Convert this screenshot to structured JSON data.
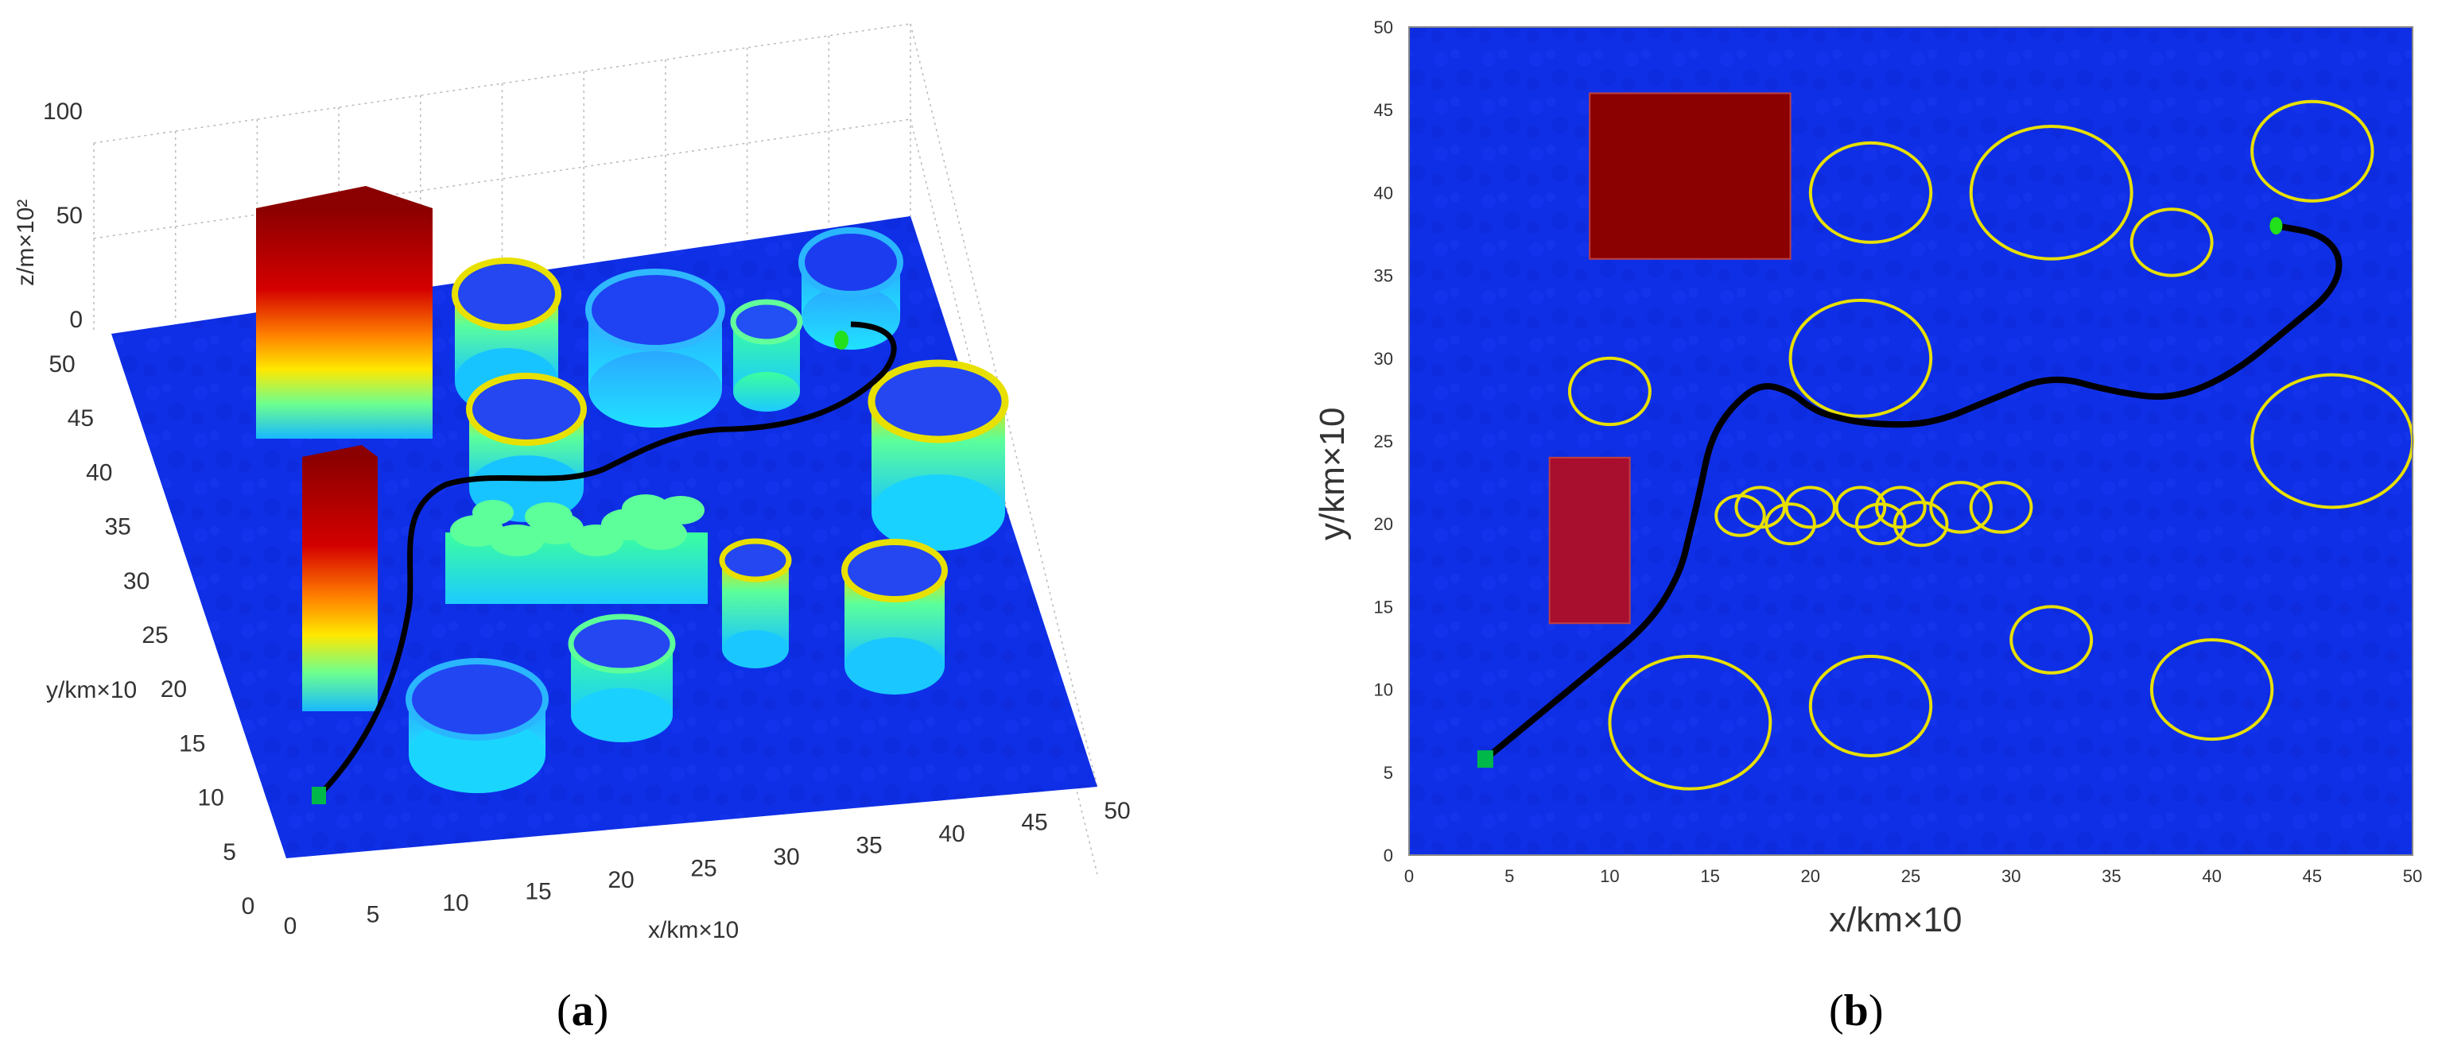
{
  "figure": {
    "panel_a_label": "a",
    "panel_b_label": "b",
    "paren_open": "(",
    "paren_close": ")"
  },
  "colors": {
    "terrain": "#0f2fe6",
    "path": "#000000",
    "circle_outline": "#e8e000",
    "block_top": "#8b0000",
    "block_b1": "#8b0000",
    "block_b2": "#a80e2e",
    "start_marker": "#00b84a",
    "goal_marker": "#22e01a"
  },
  "chart_data": [
    {
      "type": "surface3d",
      "panel": "a",
      "xlabel": "x/km×10",
      "ylabel": "y/km×10",
      "zlabel": "z/m×10²",
      "xlim": [
        0,
        50
      ],
      "ylim": [
        0,
        50
      ],
      "zlim": [
        0,
        100
      ],
      "x_ticks": [
        0,
        5,
        10,
        15,
        20,
        25,
        30,
        35,
        40,
        45,
        50
      ],
      "y_ticks": [
        0,
        5,
        10,
        15,
        20,
        25,
        30,
        35,
        40,
        45,
        50
      ],
      "z_ticks": [
        0,
        50,
        100
      ],
      "grid": true
    },
    {
      "type": "scatter",
      "panel": "b",
      "xlabel": "x/km×10",
      "ylabel": "y/km×10",
      "xlim": [
        0,
        50
      ],
      "ylim": [
        0,
        50
      ],
      "x_ticks": [
        0,
        5,
        10,
        15,
        20,
        25,
        30,
        35,
        40,
        45,
        50
      ],
      "y_ticks": [
        0,
        5,
        10,
        15,
        20,
        25,
        30,
        35,
        40,
        45,
        50
      ],
      "rectangles": [
        {
          "x": 9,
          "y": 36,
          "w": 10,
          "h": 10,
          "color": "#8b0000"
        },
        {
          "x": 7,
          "y": 14,
          "w": 4,
          "h": 10,
          "color": "#a80e2e"
        }
      ],
      "circles": [
        {
          "cx": 23,
          "cy": 40,
          "r": 3
        },
        {
          "cx": 32,
          "cy": 40,
          "r": 4
        },
        {
          "cx": 38,
          "cy": 37,
          "r": 2
        },
        {
          "cx": 45,
          "cy": 42.5,
          "r": 3
        },
        {
          "cx": 10,
          "cy": 28,
          "r": 2
        },
        {
          "cx": 22.5,
          "cy": 30,
          "r": 3.5
        },
        {
          "cx": 46,
          "cy": 25,
          "r": 4
        },
        {
          "cx": 17.5,
          "cy": 21,
          "r": 1.2
        },
        {
          "cx": 20,
          "cy": 21,
          "r": 1.2
        },
        {
          "cx": 22.5,
          "cy": 21,
          "r": 1.2
        },
        {
          "cx": 24.5,
          "cy": 21,
          "r": 1.2
        },
        {
          "cx": 27.5,
          "cy": 21,
          "r": 1.5
        },
        {
          "cx": 29.5,
          "cy": 21,
          "r": 1.5
        },
        {
          "cx": 19,
          "cy": 20,
          "r": 1.2
        },
        {
          "cx": 16.5,
          "cy": 20.5,
          "r": 1.2
        },
        {
          "cx": 23.5,
          "cy": 20,
          "r": 1.2
        },
        {
          "cx": 25.5,
          "cy": 20,
          "r": 1.3
        },
        {
          "cx": 32,
          "cy": 13,
          "r": 2
        },
        {
          "cx": 14,
          "cy": 8,
          "r": 4
        },
        {
          "cx": 23,
          "cy": 9,
          "r": 3
        },
        {
          "cx": 40,
          "cy": 10,
          "r": 3
        }
      ],
      "path": {
        "x": [
          3.8,
          6,
          9,
          12,
          13.5,
          14,
          14.5,
          15,
          16,
          17.5,
          19,
          20,
          21,
          23,
          26,
          29,
          32,
          35,
          38,
          41,
          44,
          46,
          46.5,
          45.5,
          43.2
        ],
        "y": [
          5.8,
          8,
          11,
          14,
          17,
          19.5,
          22,
          25,
          27,
          28.5,
          28,
          27,
          26.5,
          26,
          26,
          27.5,
          29,
          28,
          27.5,
          29,
          32,
          34,
          36,
          37.5,
          38
        ]
      },
      "start": {
        "x": 3.8,
        "y": 5.8
      },
      "goal": {
        "x": 43.2,
        "y": 38
      }
    }
  ]
}
